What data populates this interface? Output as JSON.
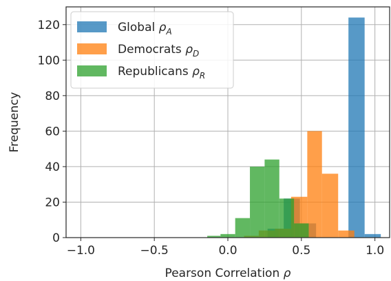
{
  "chart_data": {
    "type": "bar",
    "subtype": "overlaid-histogram",
    "xlabel_text": "Pearson Correlation ",
    "xlabel_symbol": "ρ",
    "ylabel": "Frequency",
    "xlim": [
      -1.1,
      1.1
    ],
    "ylim": [
      0,
      130
    ],
    "x_ticks": [
      -1.0,
      -0.5,
      0.0,
      0.5,
      1.0
    ],
    "x_tick_labels": [
      "−1.0",
      "−0.5",
      "0.0",
      "0.5",
      "1.0"
    ],
    "y_ticks": [
      0,
      20,
      40,
      60,
      80,
      100,
      120
    ],
    "y_tick_labels": [
      "0",
      "20",
      "40",
      "60",
      "80",
      "100",
      "120"
    ],
    "grid": true,
    "legend_position": "top-left",
    "series": [
      {
        "name": "Global",
        "symbol": "ρ",
        "subscript": "A",
        "color": "#1f77b4",
        "opacity": 0.75,
        "bins": [
          {
            "x0": 0.27,
            "x1": 0.38,
            "value": 5
          },
          {
            "x0": 0.38,
            "x1": 0.49,
            "value": 22
          },
          {
            "x0": 0.49,
            "x1": 0.6,
            "value": 8
          },
          {
            "x0": 0.6,
            "x1": 0.71,
            "value": 0
          },
          {
            "x0": 0.71,
            "x1": 0.82,
            "value": 0
          },
          {
            "x0": 0.82,
            "x1": 0.93,
            "value": 124
          },
          {
            "x0": 0.93,
            "x1": 1.04,
            "value": 2
          }
        ]
      },
      {
        "name": "Democrats",
        "symbol": "ρ",
        "subscript": "D",
        "color": "#ff7f0e",
        "opacity": 0.75,
        "bins": [
          {
            "x0": 0.11,
            "x1": 0.21,
            "value": 1
          },
          {
            "x0": 0.21,
            "x1": 0.32,
            "value": 4
          },
          {
            "x0": 0.32,
            "x1": 0.43,
            "value": 5
          },
          {
            "x0": 0.43,
            "x1": 0.54,
            "value": 23
          },
          {
            "x0": 0.54,
            "x1": 0.64,
            "value": 60
          },
          {
            "x0": 0.64,
            "x1": 0.75,
            "value": 36
          },
          {
            "x0": 0.75,
            "x1": 0.86,
            "value": 4
          }
        ]
      },
      {
        "name": "Republicans",
        "symbol": "ρ",
        "subscript": "R",
        "color": "#2ca02c",
        "opacity": 0.75,
        "bins": [
          {
            "x0": -0.14,
            "x1": -0.05,
            "value": 1
          },
          {
            "x0": -0.05,
            "x1": 0.05,
            "value": 2
          },
          {
            "x0": 0.05,
            "x1": 0.15,
            "value": 11
          },
          {
            "x0": 0.15,
            "x1": 0.25,
            "value": 40
          },
          {
            "x0": 0.25,
            "x1": 0.35,
            "value": 44
          },
          {
            "x0": 0.35,
            "x1": 0.45,
            "value": 22
          },
          {
            "x0": 0.45,
            "x1": 0.55,
            "value": 8
          }
        ]
      }
    ]
  }
}
